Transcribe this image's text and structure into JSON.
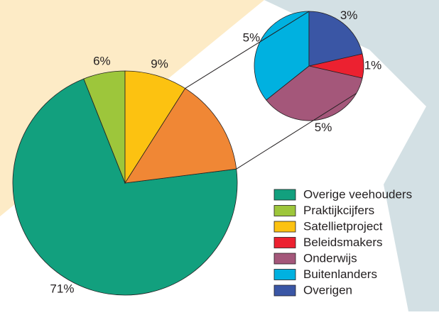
{
  "chart_data": [
    {
      "type": "pie",
      "categories": [
        "Overige veehouders",
        "Praktijkcijfers",
        "Satellietproject",
        null
      ],
      "values": [
        71,
        6,
        9,
        14
      ],
      "value_labels": [
        "71%",
        "6%",
        "9%",
        null
      ],
      "colors": [
        "#12a07e",
        "#9dc63b",
        "#fcc211",
        "#f08735"
      ]
    },
    {
      "type": "pie",
      "categories": [
        "Beleidsmakers",
        "Onderwijs",
        "Buitenlanders",
        "Overigen"
      ],
      "values": [
        1,
        5,
        5,
        3
      ],
      "value_labels": [
        "1%",
        "5%",
        "5%",
        "3%"
      ],
      "colors": [
        "#ec2130",
        "#a4577a",
        "#00b1e0",
        "#3a56a5"
      ]
    }
  ]
}
